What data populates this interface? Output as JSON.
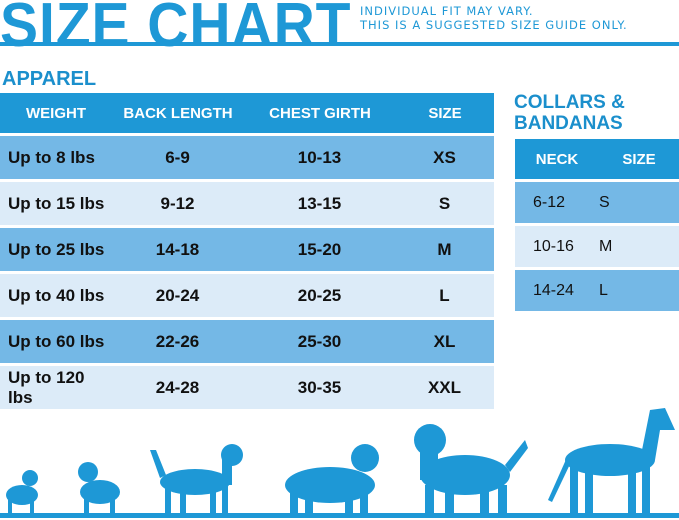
{
  "title": "SIZE CHART",
  "notes": [
    "INDIVIDUAL FIT MAY VARY.",
    "THIS IS A SUGGESTED SIZE GUIDE ONLY."
  ],
  "apparel": {
    "heading": "APPAREL",
    "columns": [
      "WEIGHT",
      "BACK LENGTH",
      "CHEST GIRTH",
      "SIZE"
    ],
    "rows": [
      [
        "Up to 8 lbs",
        "6-9",
        "10-13",
        "XS"
      ],
      [
        "Up to 15 lbs",
        "9-12",
        "13-15",
        "S"
      ],
      [
        "Up to 25 lbs",
        "14-18",
        "15-20",
        "M"
      ],
      [
        "Up to 40 lbs",
        "20-24",
        "20-25",
        "L"
      ],
      [
        "Up to 60 lbs",
        "22-26",
        "25-30",
        "XL"
      ],
      [
        "Up to 120 lbs",
        "24-28",
        "30-35",
        "XXL"
      ]
    ]
  },
  "collars": {
    "heading_1": "COLLARS &",
    "heading_2": "BANDANAS",
    "columns": [
      "NECK",
      "SIZE"
    ],
    "rows": [
      [
        "6-12",
        "S"
      ],
      [
        "10-16",
        "M"
      ],
      [
        "14-24",
        "L"
      ]
    ]
  },
  "colors": {
    "brand": "#1e98d6",
    "row_dark": "#74b8e6",
    "row_light": "#dcebf8"
  },
  "icons": [
    "dog-silhouettes-icon"
  ]
}
